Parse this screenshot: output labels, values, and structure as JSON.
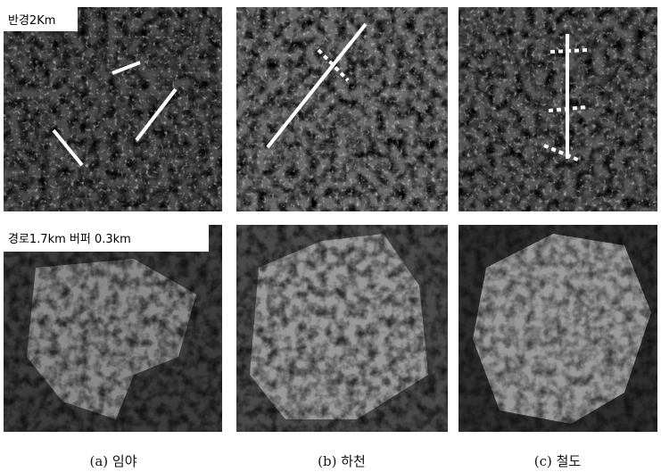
{
  "figure": {
    "row_labels": [
      "반경2Km",
      "경로1.7km 버퍼 0.3km"
    ],
    "captions": [
      "(a) 임야",
      "(b) 하천",
      "(c) 철도"
    ]
  }
}
